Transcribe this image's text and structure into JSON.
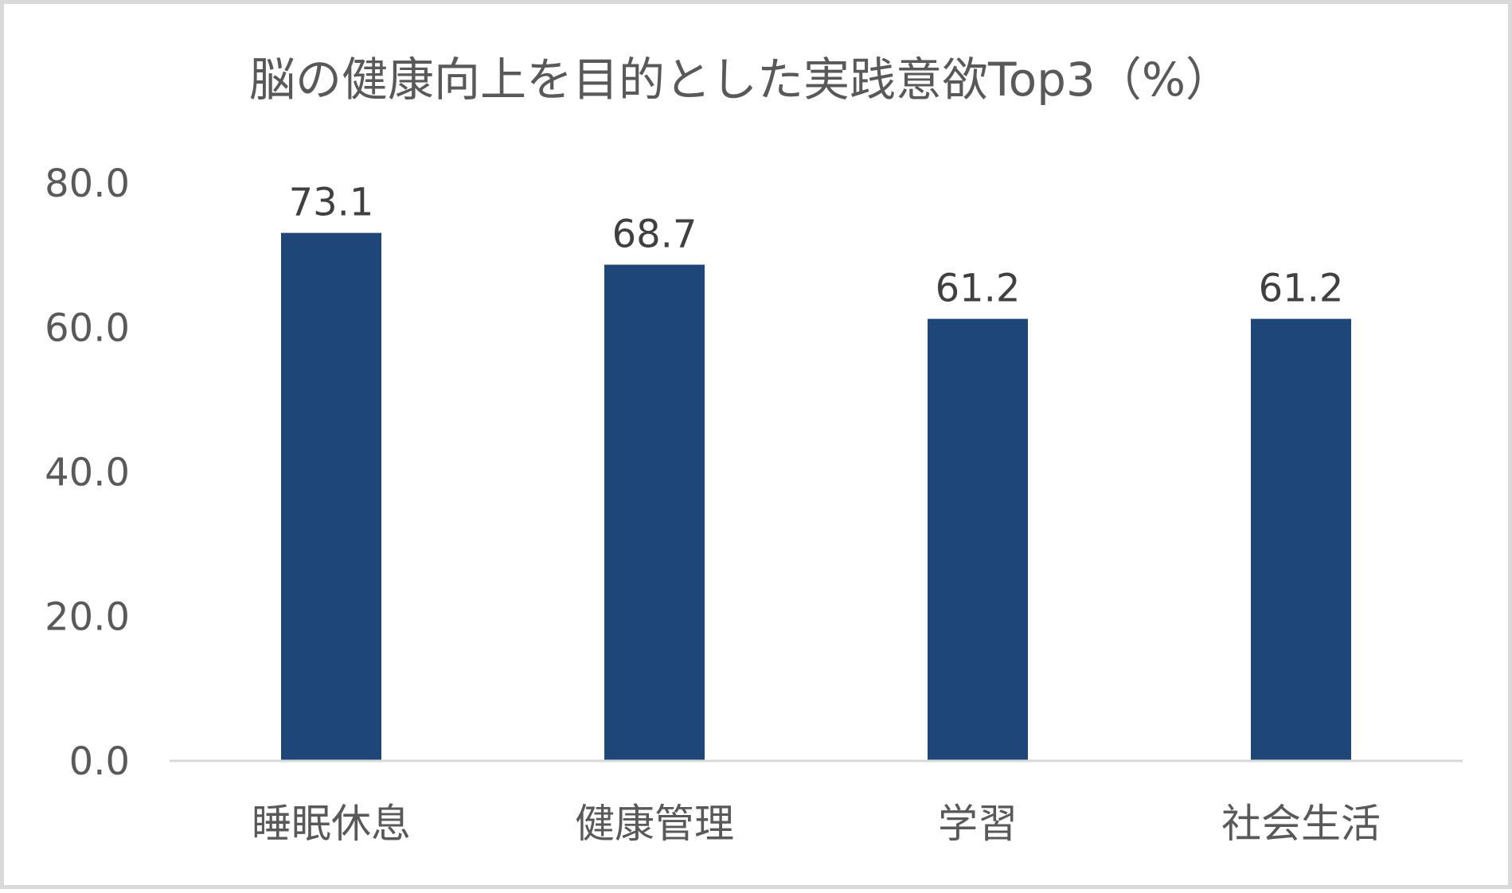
{
  "chart_data": {
    "type": "bar",
    "title": "脳の健康向上を目的とした実践意欲Top3（%）",
    "categories": [
      "睡眠休息",
      "健康管理",
      "学習",
      "社会生活"
    ],
    "series": [
      {
        "values": [
          73.1,
          68.7,
          61.2,
          61.2
        ],
        "value_labels": [
          "73.1",
          "68.7",
          "61.2",
          "61.2"
        ],
        "color": "#1f4679"
      }
    ],
    "ylim": [
      0,
      80
    ],
    "yticks": [
      0,
      20,
      40,
      60,
      80
    ],
    "ytick_labels": [
      "0.0",
      "20.0",
      "40.0",
      "60.0",
      "80.0"
    ],
    "xlabel": "",
    "ylabel": "",
    "grid": false,
    "legend": "none",
    "axis_color": "#d9d9d9",
    "text_color": "#595959"
  }
}
